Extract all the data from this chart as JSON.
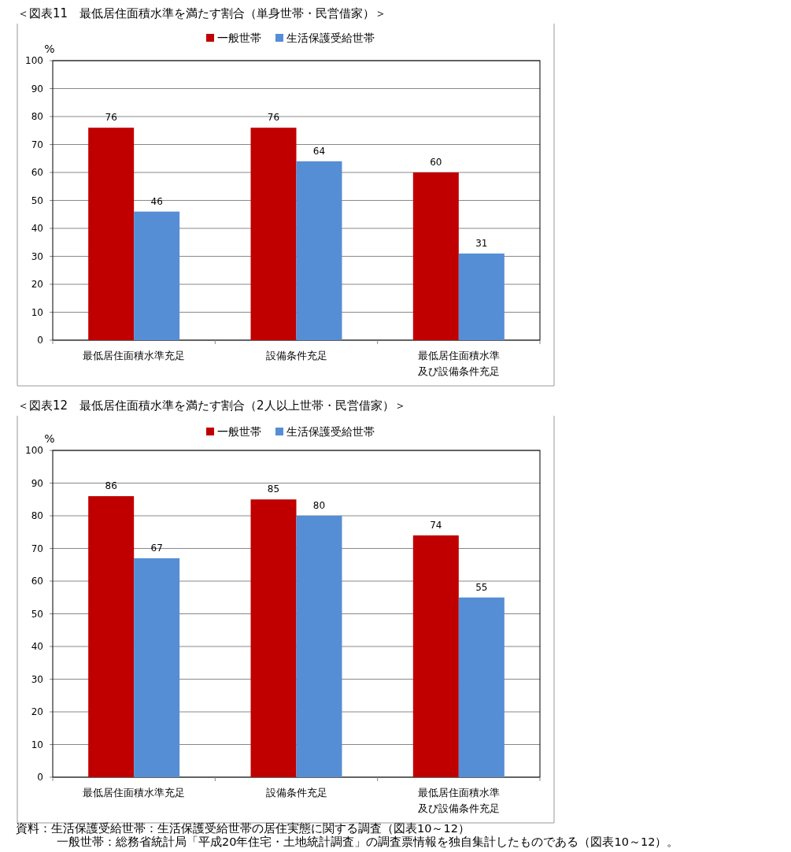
{
  "chart_data": [
    {
      "type": "bar",
      "title": "＜図表11　最低居住面積水準を満たす割合（単身世帯・民営借家）＞",
      "ylabel": "%",
      "categories": [
        "最低居住面積水準充足",
        "設備条件充足",
        "最低居住面積水準及び設備条件充足"
      ],
      "series": [
        {
          "name": "一般世帯",
          "color": "#c00000",
          "values": [
            76,
            76,
            60
          ]
        },
        {
          "name": "生活保護受給世帯",
          "color": "#558ed5",
          "values": [
            46,
            64,
            31
          ]
        }
      ],
      "ylim": [
        0,
        100
      ],
      "yticks": [
        0,
        10,
        20,
        30,
        40,
        50,
        60,
        70,
        80,
        90,
        100
      ],
      "grid": "y",
      "legend": "top",
      "data_labels": true
    },
    {
      "type": "bar",
      "title": "＜図表12　最低居住面積水準を満たす割合（2人以上世帯・民営借家）＞",
      "ylabel": "%",
      "categories": [
        "最低居住面積水準充足",
        "設備条件充足",
        "最低居住面積水準及び設備条件充足"
      ],
      "series": [
        {
          "name": "一般世帯",
          "color": "#c00000",
          "values": [
            86,
            85,
            74
          ]
        },
        {
          "name": "生活保護受給世帯",
          "color": "#558ed5",
          "values": [
            67,
            80,
            55
          ]
        }
      ],
      "ylim": [
        0,
        100
      ],
      "yticks": [
        0,
        10,
        20,
        30,
        40,
        50,
        60,
        70,
        80,
        90,
        100
      ],
      "grid": "y",
      "legend": "top",
      "data_labels": true,
      "annotations": [
        "資料：生活保護受給世帯：生活保護受給世帯の居住実態に関する調査（図表10～12）",
        "一般世帯：総務省統計局「平成20年住宅・土地統計調査」の調査票情報を独自集計したものである（図表10～12）。"
      ]
    }
  ]
}
